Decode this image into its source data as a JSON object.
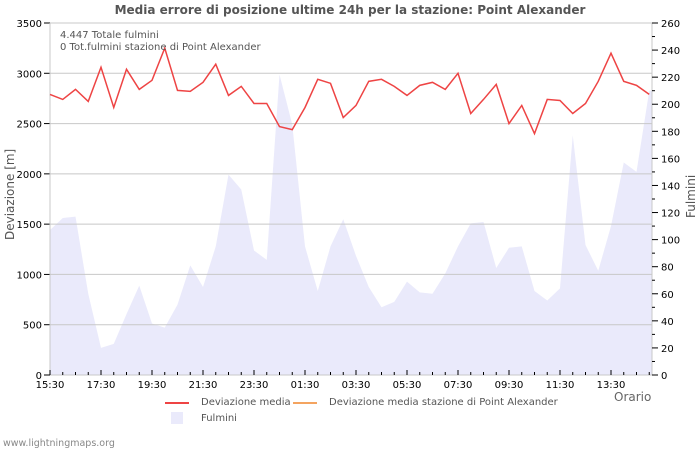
{
  "title": "Media errore di posizione ultime 24h per la stazione: Point Alexander",
  "info": {
    "total_strikes": "4.447 Totale fulmini",
    "station_strikes": "0 Tot.fulmini stazione di Point Alexander"
  },
  "axes": {
    "y_left_label": "Deviazione  [m]",
    "y_right_label": "Fulmini",
    "x_label": "Orario"
  },
  "legend": {
    "mean_deviation": "Deviazione media",
    "station_mean_deviation": "Deviazione media stazione di Point Alexander",
    "strikes": "Fulmini"
  },
  "footer": "www.lightningmaps.org",
  "colors": {
    "mean_deviation": "#ee4444",
    "station_mean_deviation": "#f4a460",
    "strikes_fill": "#eaeafb",
    "grid": "#c8c8c8"
  },
  "chart_data": {
    "type": "line",
    "title": "Media errore di posizione ultime 24h per la stazione: Point Alexander",
    "xlabel": "Orario",
    "ylabel": "Deviazione  [m]",
    "ylabel_right": "Fulmini",
    "ylim": [
      0,
      3500
    ],
    "ylim_right": [
      0,
      260
    ],
    "y_ticks": [
      0,
      500,
      1000,
      1500,
      2000,
      2500,
      3000,
      3500
    ],
    "y_right_ticks": [
      0,
      20,
      40,
      60,
      80,
      100,
      120,
      140,
      160,
      180,
      200,
      220,
      240,
      260
    ],
    "x_ticks": [
      "15:30",
      "17:30",
      "19:30",
      "21:30",
      "23:30",
      "01:30",
      "03:30",
      "05:30",
      "07:30",
      "09:30",
      "11:30",
      "13:30"
    ],
    "grid": true,
    "legend_position": "bottom",
    "series": [
      {
        "name": "Deviazione media",
        "axis": "left",
        "type": "line",
        "values": [
          2790,
          2740,
          2840,
          2720,
          3060,
          2660,
          3040,
          2840,
          2930,
          3250,
          2830,
          2820,
          2910,
          3090,
          2780,
          2870,
          2700,
          2700,
          2470,
          2440,
          2660,
          2940,
          2900,
          2560,
          2680,
          2920,
          2940,
          2870,
          2780,
          2880,
          2910,
          2840,
          3000,
          2600,
          2740,
          2890,
          2500,
          2680,
          2400,
          2740,
          2730,
          2600,
          2700,
          2920,
          3200,
          2920,
          2880,
          2790
        ]
      },
      {
        "name": "Deviazione media stazione di Point Alexander",
        "axis": "left",
        "type": "line",
        "values": []
      },
      {
        "name": "Fulmini",
        "axis": "right",
        "type": "area",
        "values": [
          107,
          116,
          117,
          60,
          20,
          23,
          45,
          66,
          38,
          35,
          52,
          81,
          65,
          95,
          148,
          137,
          92,
          85,
          222,
          185,
          95,
          62,
          95,
          115,
          88,
          65,
          50,
          54,
          69,
          61,
          60,
          75,
          95,
          112,
          113,
          79,
          94,
          95,
          62,
          55,
          64,
          177,
          96,
          77,
          110,
          157,
          150,
          210
        ]
      }
    ]
  }
}
